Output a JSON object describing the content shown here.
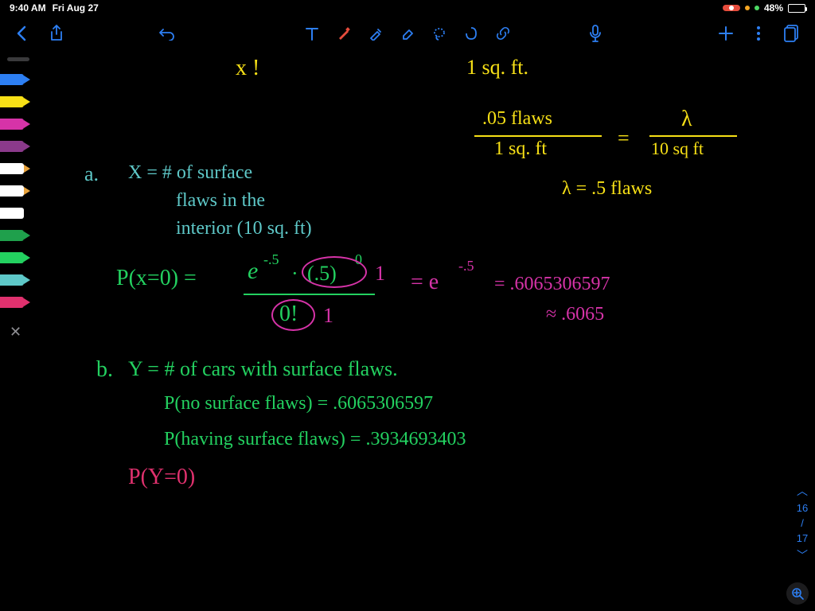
{
  "status": {
    "time": "9:40 AM",
    "date": "Fri Aug 27",
    "recording": true,
    "battery_pct": "48%",
    "battery_fill_pct": 48
  },
  "toolbar": {
    "back_icon": "chevron-left",
    "share_icon": "share",
    "undo_icon": "undo",
    "tools": [
      "text",
      "pen",
      "highlighter",
      "eraser",
      "lasso",
      "shape",
      "link"
    ],
    "mic_icon": "microphone",
    "add_icon": "plus",
    "more_icon": "dots",
    "pages_icon": "pages",
    "accent_color": "#2d7ff3"
  },
  "pen_palette": [
    {
      "body": "#2d7ff3",
      "tip": "#2d7ff3"
    },
    {
      "body": "#f7e016",
      "tip": "#f7e016"
    },
    {
      "body": "#d633a8",
      "tip": "#d633a8"
    },
    {
      "body": "#8b3a8b",
      "tip": "#8b3a8b"
    },
    {
      "body": "#ffffff",
      "tip": "#e8a33d"
    },
    {
      "body": "#ffffff",
      "tip": "#e8a33d"
    },
    {
      "body": "#ffffff",
      "tip": "#000000"
    },
    {
      "body": "#1fa04c",
      "tip": "#1fa04c"
    },
    {
      "body": "#23d160",
      "tip": "#23d160"
    },
    {
      "body": "#5ec8c8",
      "tip": "#5ec8c8"
    },
    {
      "body": "#e0316e",
      "tip": "#e0316e"
    }
  ],
  "colors": {
    "yellow": "#f7e016",
    "teal": "#5ec8c8",
    "green": "#23d160",
    "magenta": "#d633a8",
    "pink": "#e0316e",
    "accent": "#2d7ff3",
    "canvas_bg": "#000000"
  },
  "handwriting": {
    "x_fact": "x !",
    "sqft1": "1 sq. ft.",
    "rate_top": ".05 flaws",
    "rate_bot": "1 sq. ft",
    "eq1": "=",
    "lambda_sym": "λ",
    "lambda_bot": "10 sq ft",
    "lambda_val": "λ = .5 flaws",
    "a_label": "a.",
    "a_def1": "X = # of surface",
    "a_def2": "flaws in the",
    "a_def3": "interior (10 sq. ft)",
    "p_lhs": "P(x=0) =",
    "p_num1": "e",
    "p_exp1": "-.5",
    "p_dot": "·",
    "p_base": "(.5)",
    "p_pow0": "0",
    "p_one_top": "1",
    "p_denom": "0!",
    "p_one_bot": "1",
    "p_eq2": "= e",
    "p_exp2": "-.5",
    "p_val": "= .6065306597",
    "p_approx": "≈ .6065",
    "b_label": "b.",
    "b_def": "Y = # of cars with surface flaws.",
    "b_p1": "P(no surface flaws) = .6065306597",
    "b_p2": "P(having surface flaws) = .3934693403",
    "b_py0": "P(Y=0)"
  },
  "pager": {
    "current": "16",
    "sep": "/",
    "total": "17"
  }
}
